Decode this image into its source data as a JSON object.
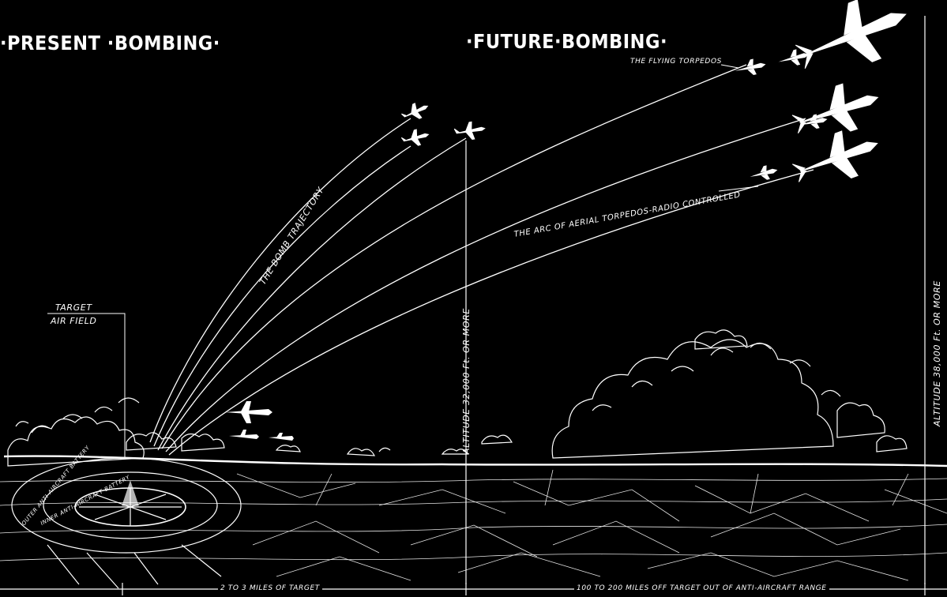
{
  "headings": {
    "present": "·PRESENT ·BOMBING·",
    "future": "·FUTURE·BOMBING·"
  },
  "labels": {
    "flying_torpedos": "THE FLYING TORPEDOS",
    "bomb_trajectory": "THE BOMB TRAJECTORY",
    "arc_torpedos": "THE ARC OF AERIAL TORPEDOS-RADIO CONTROLLED",
    "target_line1": "TARGET",
    "target_line2": "AIR FIELD",
    "altitude_mid": "ALTITUDE 32,000 Ft. OR MORE",
    "altitude_right": "ALTITUDE 38,000 Ft. OR MORE",
    "outer_battery": "OUTER ANTI-AIRCRAFT BATTERY",
    "inner_battery": "INNER ANTI-AIRCRAFT BATTERY",
    "distance_near": "2 TO 3 MILES OF TARGET",
    "distance_far": "100 TO 200 MILES OFF TARGET OUT OF ANTI-AIRCRAFT RANGE"
  },
  "colors": {
    "background": "#000000",
    "ink": "#ffffff"
  }
}
